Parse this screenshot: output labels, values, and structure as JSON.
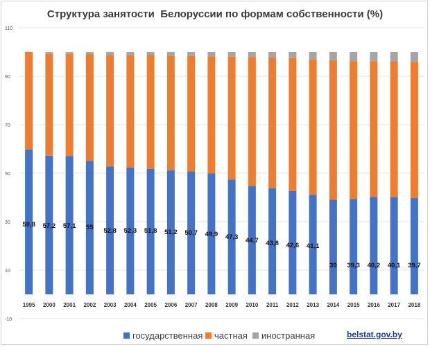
{
  "chart_data": {
    "type": "bar",
    "stacked": true,
    "title": "Структура занятости  Белоруссии по формам собственности (%)",
    "categories": [
      "1995",
      "2000",
      "2001",
      "2002",
      "2003",
      "2004",
      "2005",
      "2006",
      "2007",
      "2008",
      "2009",
      "2010",
      "2011",
      "2012",
      "2013",
      "2014",
      "2015",
      "2016",
      "2017",
      "2018"
    ],
    "series": [
      {
        "name": "государственная",
        "color": "#4472c4",
        "values": [
          59.8,
          57.2,
          57.1,
          55,
          52.8,
          52.3,
          51.8,
          51.2,
          50.7,
          49.9,
          47.3,
          44.7,
          43.8,
          42.6,
          41.1,
          39,
          39.3,
          40.2,
          40.1,
          39.7
        ]
      },
      {
        "name": "частная",
        "color": "#ed7d31",
        "values": [
          40.2,
          42.0,
          42.1,
          44.0,
          46.0,
          46.4,
          46.9,
          47.3,
          47.6,
          48.3,
          50.8,
          53.2,
          54.0,
          54.9,
          55.7,
          57.6,
          56.9,
          56.0,
          55.9,
          56.1
        ]
      },
      {
        "name": "иностранная",
        "color": "#a5a5a5",
        "values": [
          0.0,
          0.8,
          0.8,
          1.0,
          1.2,
          1.3,
          1.3,
          1.5,
          1.7,
          1.8,
          1.9,
          2.1,
          2.2,
          2.5,
          3.2,
          3.4,
          3.8,
          3.8,
          4.0,
          4.2
        ]
      }
    ],
    "data_labels": [
      "59,8",
      "57,2",
      "57,1",
      "55",
      "52,8",
      "52,3",
      "51,8",
      "51,2",
      "50,7",
      "49,9",
      "47,3",
      "44,7",
      "43,8",
      "42,6",
      "41,1",
      "39",
      "39,3",
      "40,2",
      "40,1",
      "39,7"
    ],
    "yticks": [
      "-10",
      "10",
      "30",
      "50",
      "70",
      "90",
      "110"
    ],
    "ylim": [
      -10,
      110
    ],
    "legend_position": "bottom",
    "grid": true
  },
  "source": "belstat.gov.by"
}
